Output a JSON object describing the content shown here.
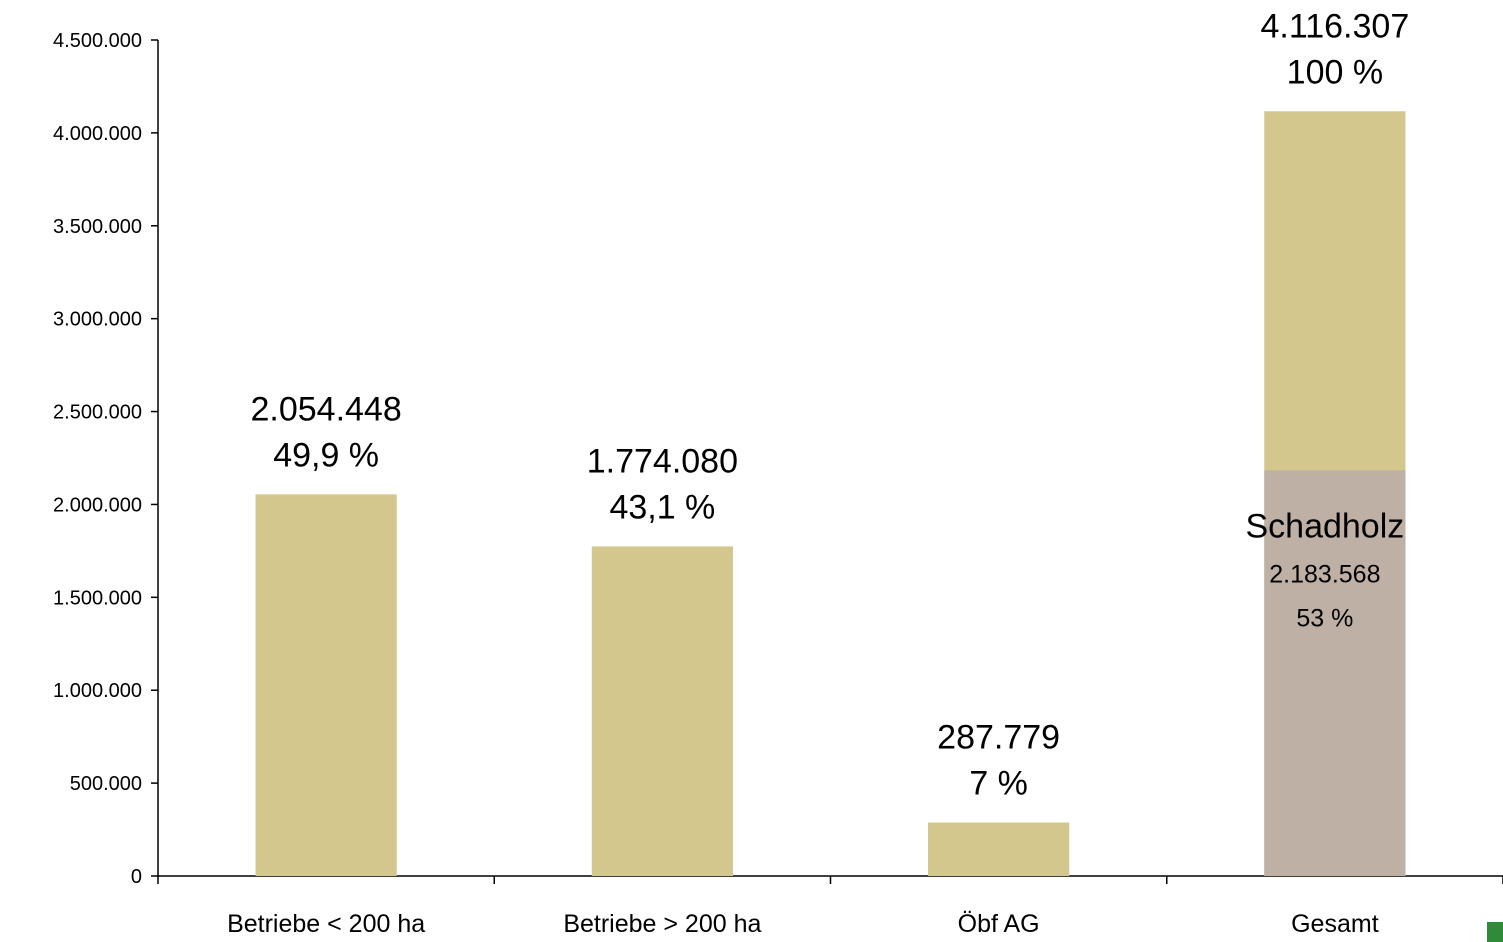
{
  "chart_data": {
    "type": "bar",
    "categories": [
      "Betriebe < 200 ha",
      "Betriebe > 200 ha",
      "Öbf AG",
      "Gesamt"
    ],
    "values": [
      2054448,
      1774080,
      287779,
      4116307
    ],
    "value_labels": [
      "2.054.448",
      "1.774.080",
      "287.779",
      "4.116.307"
    ],
    "percent_labels": [
      "49,9 %",
      "43,1 %",
      "7 %",
      "100 %"
    ],
    "stacked_segment": {
      "category": "Gesamt",
      "name": "Schadholz",
      "value": 2183568,
      "value_label": "2.183.568",
      "percent_label": "53 %"
    },
    "ylim": [
      0,
      4500000
    ],
    "yticks": [
      0,
      500000,
      1000000,
      1500000,
      2000000,
      2500000,
      3000000,
      3500000,
      4000000,
      4500000
    ],
    "ytick_labels": [
      "0",
      "500.000",
      "1.000.000",
      "1.500.000",
      "2.000.000",
      "2.500.000",
      "3.000.000",
      "3.500.000",
      "4.000.000",
      "4.500.000"
    ],
    "title": "",
    "xlabel": "",
    "ylabel": "",
    "grid": false,
    "colors": {
      "bar": "#d4c78e",
      "schadholz": "#bfb0a6",
      "axis": "#000000",
      "corner_mark": "#2f8a3a"
    }
  }
}
